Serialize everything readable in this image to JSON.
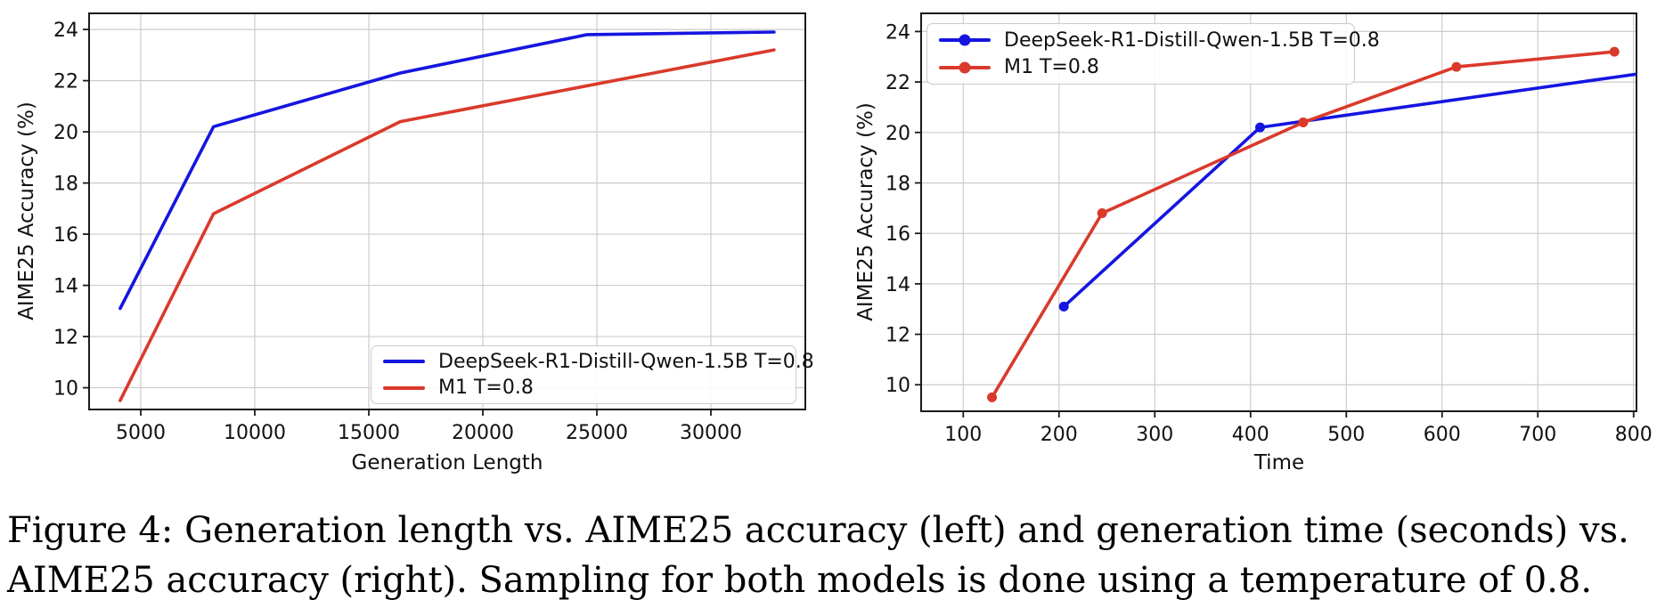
{
  "figure": {
    "caption_lines": [
      "Figure 4: Generation length vs. AIME25 accuracy (left) and generation time (seconds) vs.",
      "AIME25 accuracy (right). Sampling for both models is done using a temperature of 0.8."
    ]
  },
  "colors": {
    "blue": "#1515e0",
    "red": "#d93a2b",
    "grid": "#cccccc",
    "spine": "#1a1a1a",
    "text": "#111111"
  },
  "chart_data": [
    {
      "type": "line",
      "title": "",
      "xlabel": "Generation Length",
      "ylabel": "AIME25 Accuracy (%)",
      "x_ticks": [
        5000,
        10000,
        15000,
        20000,
        25000,
        30000
      ],
      "y_ticks": [
        10,
        12,
        14,
        16,
        18,
        20,
        22,
        24
      ],
      "xlim": [
        2734,
        34141
      ],
      "ylim": [
        9.15,
        24.63
      ],
      "grid": true,
      "legend_position": "lower right",
      "series": [
        {
          "name": "DeepSeek-R1-Distill-Qwen-1.5B T=0.8",
          "color": "#1515e0",
          "marker": "none",
          "x": [
            4096,
            8192,
            16384,
            24576,
            32768
          ],
          "y": [
            13.1,
            20.2,
            22.3,
            23.8,
            23.9
          ]
        },
        {
          "name": "M1 T=0.8",
          "color": "#d93a2b",
          "marker": "none",
          "x": [
            4096,
            8192,
            16384,
            32768
          ],
          "y": [
            9.5,
            16.8,
            20.4,
            23.2
          ]
        }
      ]
    },
    {
      "type": "line",
      "title": "",
      "xlabel": "Time",
      "ylabel": "AIME25 Accuracy (%)",
      "x_ticks": [
        100,
        200,
        300,
        400,
        500,
        600,
        700,
        800
      ],
      "y_ticks": [
        10,
        12,
        14,
        16,
        18,
        20,
        22,
        24
      ],
      "xlim": [
        56,
        803
      ],
      "ylim": [
        8.95,
        24.72
      ],
      "grid": true,
      "legend_position": "upper left",
      "series": [
        {
          "name": "DeepSeek-R1-Distill-Qwen-1.5B T=0.8",
          "color": "#1515e0",
          "marker": "circle",
          "x": [
            205,
            410,
            810
          ],
          "y": [
            13.1,
            20.2,
            22.35
          ]
        },
        {
          "name": "M1 T=0.8",
          "color": "#d93a2b",
          "marker": "circle",
          "x": [
            130,
            245,
            455,
            615,
            780
          ],
          "y": [
            9.5,
            16.8,
            20.4,
            22.6,
            23.2
          ]
        }
      ]
    }
  ]
}
